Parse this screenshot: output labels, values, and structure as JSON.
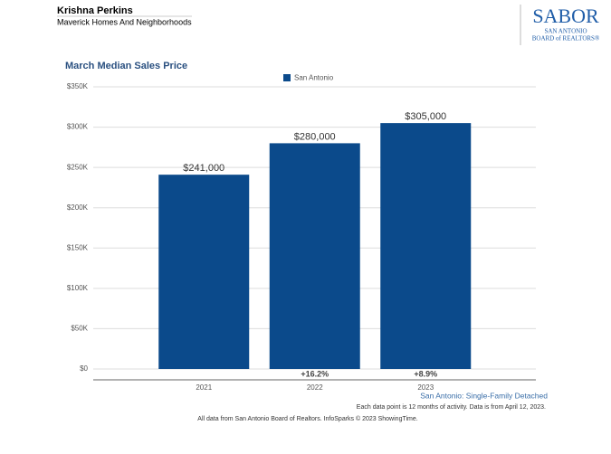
{
  "header": {
    "name": "Krishna Perkins",
    "company": "Maverick Homes And Neighborhoods"
  },
  "logo": {
    "brand": "SABOR",
    "line1": "SAN ANTONIO",
    "line2": "BOARD of REALTORS®"
  },
  "chart_data": {
    "type": "bar",
    "title": "March Median Sales Price",
    "categories": [
      "2021",
      "2022",
      "2023"
    ],
    "series": [
      {
        "name": "San Antonio",
        "color": "#0b4a8b",
        "values": [
          241000,
          280000,
          305000
        ],
        "value_labels": [
          "$241,000",
          "$280,000",
          "$305,000"
        ]
      }
    ],
    "change_labels": [
      null,
      "+16.2%",
      "+8.9%"
    ],
    "ylim": [
      0,
      350000
    ],
    "yticks": [
      {
        "value": 0,
        "label": "$0"
      },
      {
        "value": 50000,
        "label": "$50K"
      },
      {
        "value": 100000,
        "label": "$100K"
      },
      {
        "value": 150000,
        "label": "$150K"
      },
      {
        "value": 200000,
        "label": "$200K"
      },
      {
        "value": 250000,
        "label": "$250K"
      },
      {
        "value": 300000,
        "label": "$300K"
      },
      {
        "value": 350000,
        "label": "$350K"
      }
    ],
    "grid": true,
    "legend": "top",
    "subtitle": "San Antonio: Single-Family Detached",
    "note": "Each data point is 12 months of activity. Data is from April 12, 2023.",
    "source": "All data from San Antonio Board of Realtors. InfoSparks © 2023 ShowingTime."
  }
}
